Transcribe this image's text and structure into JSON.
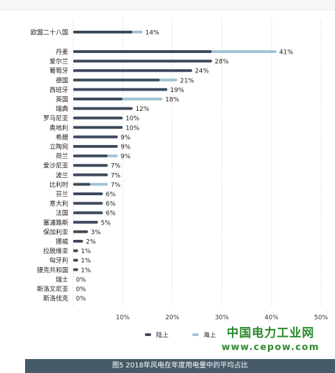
{
  "chart_data": {
    "type": "bar",
    "orientation": "horizontal",
    "stacked": true,
    "categories": [
      "欧盟二十八国",
      "丹麦",
      "爱尔兰",
      "葡萄牙",
      "德国",
      "西班牙",
      "英国",
      "瑞典",
      "罗马尼亚",
      "奥地利",
      "希腊",
      "立陶宛",
      "荷兰",
      "爱沙尼亚",
      "波兰",
      "比利时",
      "芬兰",
      "意大利",
      "法国",
      "塞浦路斯",
      "保加利亚",
      "挪威",
      "拉脱维亚",
      "匈牙利",
      "捷克共和国",
      "瑞士",
      "斯洛文尼亚",
      "斯洛伐克"
    ],
    "series": [
      {
        "name": "陆上",
        "color": "#3d4b5c",
        "values": [
          12,
          28,
          28,
          24,
          17.5,
          19,
          10,
          12,
          10,
          10,
          9,
          9,
          7,
          7,
          7,
          3.5,
          6,
          6,
          6,
          5,
          3,
          2,
          1,
          1,
          1,
          0,
          0,
          0
        ]
      },
      {
        "name": "海上",
        "color": "#9fc4d6",
        "values": [
          2,
          13,
          0,
          0,
          3.5,
          0,
          8,
          0,
          0,
          0,
          0,
          0,
          2,
          0,
          0,
          3.5,
          0,
          0,
          0,
          0,
          0,
          0,
          0,
          0,
          0,
          0,
          0,
          0
        ]
      }
    ],
    "total_labels": [
      "14%",
      "41%",
      "28%",
      "24%",
      "21%",
      "19%",
      "18%",
      "12%",
      "10%",
      "10%",
      "9%",
      "9%",
      "9%",
      "7%",
      "7%",
      "7%",
      "6%",
      "6%",
      "6%",
      "5%",
      "3%",
      "2%",
      "1%",
      "1%",
      "1%",
      "0%",
      "0%",
      "0%"
    ],
    "x_ticks": [
      "10%",
      "20%",
      "30%",
      "40%",
      "50%"
    ],
    "xlim": [
      0,
      50
    ],
    "grid": "vertical-dotted",
    "legend_position": "bottom",
    "title": "",
    "xlabel": "",
    "ylabel": ""
  },
  "caption": "图5 2018年风电在年度用电量中的平均占比",
  "watermark": {
    "title": "中国电力工业网",
    "url": "www.cepow.com"
  }
}
